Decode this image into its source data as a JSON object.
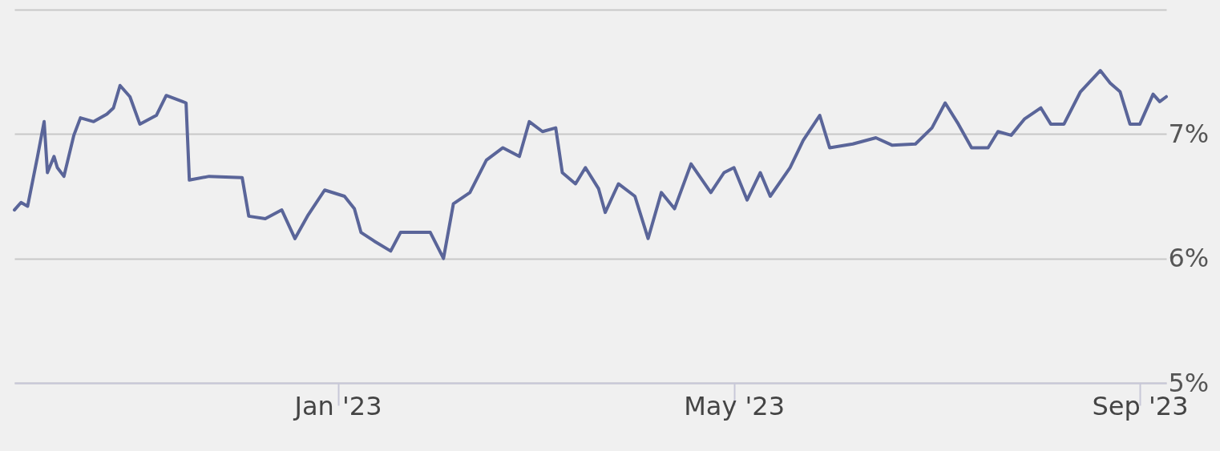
{
  "chart_data": {
    "type": "line",
    "grid": "y",
    "marker": "none",
    "line_style": "solid",
    "xlim": [
      "2022-09-25",
      "2023-09-09"
    ],
    "xticks": [
      {
        "value": "2023-01-01",
        "label": "Jan '23"
      },
      {
        "value": "2023-05-01",
        "label": "May '23"
      },
      {
        "value": "2023-09-01",
        "label": "Sep '23"
      }
    ],
    "ylim": [
      5,
      8
    ],
    "yticks": [
      {
        "value": 5,
        "label": "5%"
      },
      {
        "value": 6,
        "label": "6%"
      },
      {
        "value": 7,
        "label": "7%"
      },
      {
        "value": 8,
        "label": null
      }
    ],
    "x": [
      "2022-09-25",
      "2022-09-27",
      "2022-09-29",
      "2022-10-02",
      "2022-10-04",
      "2022-10-05",
      "2022-10-07",
      "2022-10-08",
      "2022-10-10",
      "2022-10-13",
      "2022-10-15",
      "2022-10-19",
      "2022-10-23",
      "2022-10-25",
      "2022-10-27",
      "2022-10-30",
      "2022-11-02",
      "2022-11-07",
      "2022-11-10",
      "2022-11-15",
      "2022-11-16",
      "2022-11-17",
      "2022-11-23",
      "2022-12-03",
      "2022-12-05",
      "2022-12-10",
      "2022-12-15",
      "2022-12-19",
      "2022-12-23",
      "2022-12-28",
      "2023-01-03",
      "2023-01-06",
      "2023-01-08",
      "2023-01-12",
      "2023-01-17",
      "2023-01-20",
      "2023-01-29",
      "2023-02-02",
      "2023-02-05",
      "2023-02-10",
      "2023-02-15",
      "2023-02-20",
      "2023-02-25",
      "2023-02-28",
      "2023-03-04",
      "2023-03-08",
      "2023-03-10",
      "2023-03-14",
      "2023-03-17",
      "2023-03-21",
      "2023-03-23",
      "2023-03-27",
      "2023-04-01",
      "2023-04-05",
      "2023-04-09",
      "2023-04-13",
      "2023-04-18",
      "2023-04-24",
      "2023-04-28",
      "2023-05-01",
      "2023-05-05",
      "2023-05-09",
      "2023-05-12",
      "2023-05-18",
      "2023-05-22",
      "2023-05-27",
      "2023-05-30",
      "2023-06-06",
      "2023-06-13",
      "2023-06-18",
      "2023-06-25",
      "2023-06-30",
      "2023-07-04",
      "2023-07-08",
      "2023-07-12",
      "2023-07-17",
      "2023-07-20",
      "2023-07-24",
      "2023-07-28",
      "2023-08-02",
      "2023-08-05",
      "2023-08-09",
      "2023-08-14",
      "2023-08-20",
      "2023-08-23",
      "2023-08-26",
      "2023-08-29",
      "2023-09-01",
      "2023-09-05",
      "2023-09-07",
      "2023-09-09"
    ],
    "series": [
      {
        "color": "#5a6599",
        "values": [
          6.39,
          6.45,
          6.42,
          6.82,
          7.1,
          6.69,
          6.82,
          6.73,
          6.66,
          6.99,
          7.13,
          7.1,
          7.16,
          7.21,
          7.39,
          7.3,
          7.08,
          7.15,
          7.31,
          7.26,
          7.25,
          6.63,
          6.66,
          6.65,
          6.34,
          6.32,
          6.39,
          6.16,
          6.35,
          6.55,
          6.5,
          6.4,
          6.21,
          6.14,
          6.06,
          6.21,
          6.21,
          6.0,
          6.44,
          6.53,
          6.79,
          6.89,
          6.82,
          7.1,
          7.02,
          7.05,
          6.69,
          6.6,
          6.73,
          6.56,
          6.37,
          6.6,
          6.5,
          6.16,
          6.53,
          6.4,
          6.76,
          6.53,
          6.69,
          6.73,
          6.47,
          6.69,
          6.5,
          6.73,
          6.95,
          7.15,
          6.89,
          6.92,
          6.97,
          6.91,
          6.92,
          7.05,
          7.25,
          7.08,
          6.89,
          6.89,
          7.02,
          6.99,
          7.12,
          7.21,
          7.08,
          7.08,
          7.34,
          7.51,
          7.41,
          7.34,
          7.08,
          7.08,
          7.32,
          7.26,
          7.3
        ]
      }
    ]
  }
}
